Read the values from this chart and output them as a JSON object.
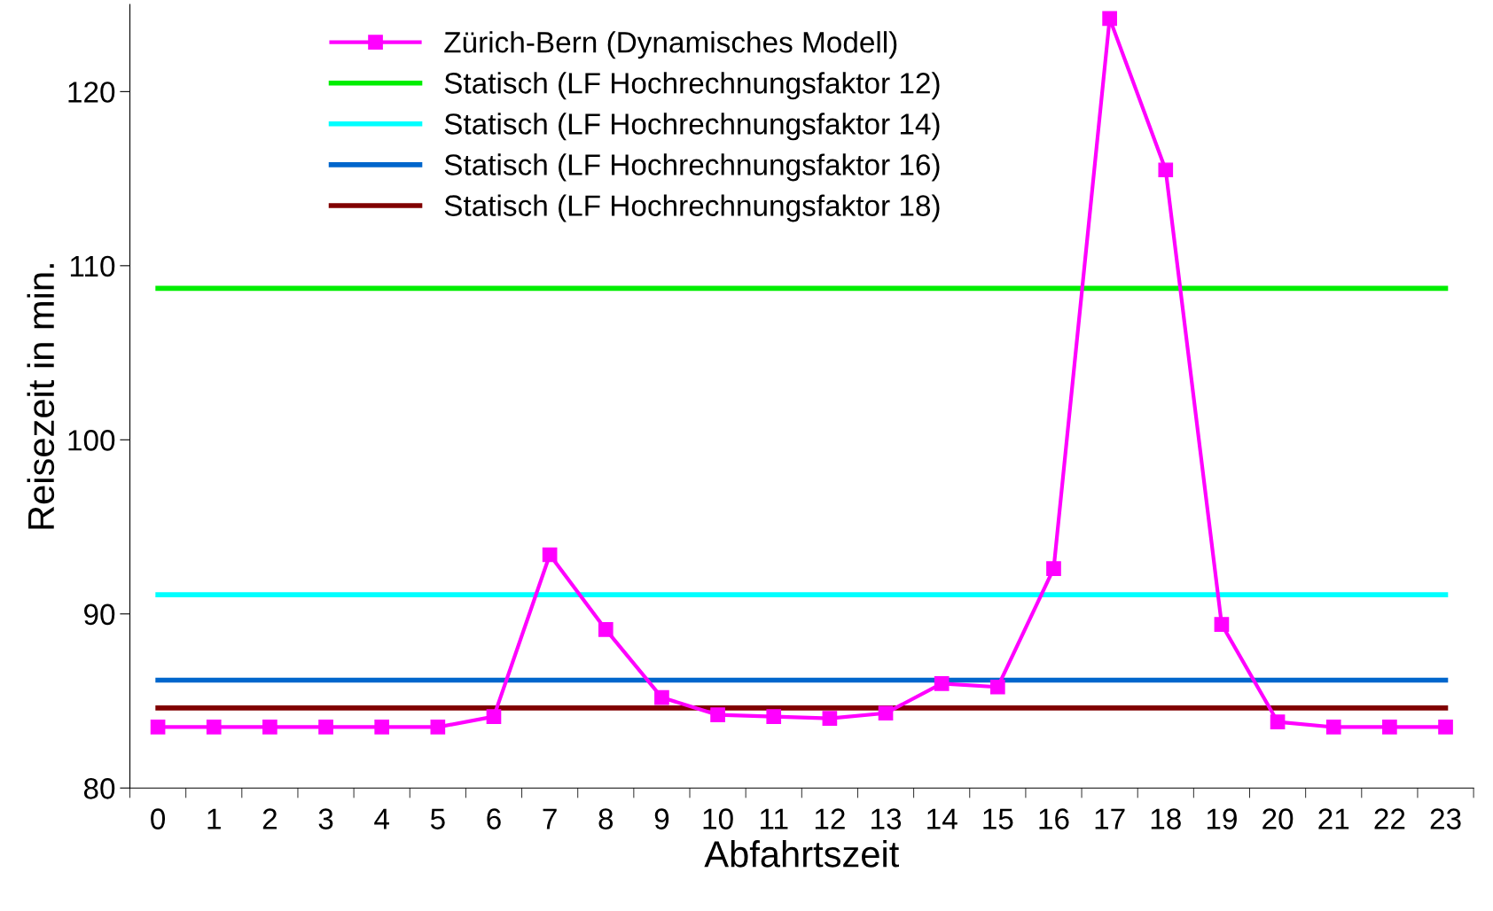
{
  "chart_data": {
    "type": "line",
    "xlabel": "Abfahrtszeit",
    "ylabel": "Reisezeit in min.",
    "categories": [
      "0",
      "1",
      "2",
      "3",
      "4",
      "5",
      "6",
      "7",
      "8",
      "9",
      "10",
      "11",
      "12",
      "13",
      "14",
      "15",
      "16",
      "17",
      "18",
      "19",
      "20",
      "21",
      "22",
      "23"
    ],
    "series": [
      {
        "name": "Zürich-Bern (Dynamisches Modell)",
        "color": "#ff00ff",
        "marker": "square",
        "values": [
          83.5,
          83.5,
          83.5,
          83.5,
          83.5,
          83.5,
          84.1,
          93.4,
          89.1,
          85.2,
          84.2,
          84.1,
          84.0,
          84.3,
          86.0,
          85.8,
          92.6,
          124.2,
          115.5,
          89.4,
          83.8,
          83.5,
          83.5,
          83.5
        ]
      },
      {
        "name": "Statisch (LF Hochrechnungsfaktor 12)",
        "color": "#00ee00",
        "marker": "none",
        "values": [
          108.7,
          108.7,
          108.7,
          108.7,
          108.7,
          108.7,
          108.7,
          108.7,
          108.7,
          108.7,
          108.7,
          108.7,
          108.7,
          108.7,
          108.7,
          108.7,
          108.7,
          108.7,
          108.7,
          108.7,
          108.7,
          108.7,
          108.7,
          108.7
        ]
      },
      {
        "name": "Statisch (LF Hochrechnungsfaktor 14)",
        "color": "#00ffff",
        "marker": "none",
        "values": [
          91.1,
          91.1,
          91.1,
          91.1,
          91.1,
          91.1,
          91.1,
          91.1,
          91.1,
          91.1,
          91.1,
          91.1,
          91.1,
          91.1,
          91.1,
          91.1,
          91.1,
          91.1,
          91.1,
          91.1,
          91.1,
          91.1,
          91.1,
          91.1
        ]
      },
      {
        "name": "Statisch (LF Hochrechnungsfaktor 16)",
        "color": "#0066cc",
        "marker": "none",
        "values": [
          86.2,
          86.2,
          86.2,
          86.2,
          86.2,
          86.2,
          86.2,
          86.2,
          86.2,
          86.2,
          86.2,
          86.2,
          86.2,
          86.2,
          86.2,
          86.2,
          86.2,
          86.2,
          86.2,
          86.2,
          86.2,
          86.2,
          86.2,
          86.2
        ]
      },
      {
        "name": "Statisch (LF Hochrechnungsfaktor 18)",
        "color": "#800000",
        "marker": "none",
        "values": [
          84.6,
          84.6,
          84.6,
          84.6,
          84.6,
          84.6,
          84.6,
          84.6,
          84.6,
          84.6,
          84.6,
          84.6,
          84.6,
          84.6,
          84.6,
          84.6,
          84.6,
          84.6,
          84.6,
          84.6,
          84.6,
          84.6,
          84.6,
          84.6
        ]
      }
    ],
    "ylim": [
      80,
      125
    ],
    "yticks": [
      80,
      90,
      100,
      110,
      120
    ],
    "grid": false,
    "legend": "top left"
  }
}
